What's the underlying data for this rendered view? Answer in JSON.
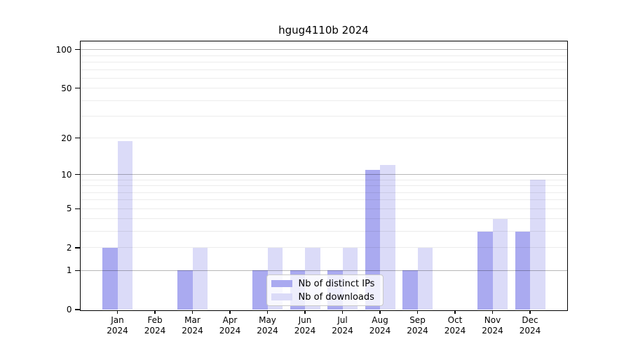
{
  "title": "hgug4110b 2024",
  "chart_data": {
    "type": "bar",
    "title": "hgug4110b 2024",
    "categories": [
      "Jan",
      "Feb",
      "Mar",
      "Apr",
      "May",
      "Jun",
      "Jul",
      "Aug",
      "Sep",
      "Oct",
      "Nov",
      "Dec"
    ],
    "category_year": "2024",
    "series": [
      {
        "name": "Nb of distinct IPs",
        "color": "#aaaaf0",
        "values": [
          2,
          0,
          1,
          0,
          1,
          1,
          1,
          11,
          1,
          0,
          3,
          3
        ]
      },
      {
        "name": "Nb of downloads",
        "color": "#dbdbf8",
        "values": [
          19,
          0,
          2,
          0,
          2,
          2,
          2,
          12,
          2,
          0,
          4,
          9
        ]
      }
    ],
    "xlabel": "",
    "ylabel": "",
    "yticks": [
      0,
      1,
      2,
      5,
      10,
      20,
      50,
      100
    ],
    "minor_gridlines": [
      2,
      3,
      4,
      5,
      6,
      7,
      8,
      9,
      20,
      30,
      40,
      50,
      60,
      70,
      80,
      90
    ],
    "major_gridlines": [
      1,
      10,
      100
    ],
    "scale": "log10(1+x)",
    "ylim": [
      0,
      116
    ],
    "grid": true,
    "legend_position": "inside-bottom-center",
    "colors": {
      "axis": "#000000",
      "minor_grid": "#ececec",
      "major_grid": "#b4b4b4",
      "background": "#ffffff"
    }
  }
}
